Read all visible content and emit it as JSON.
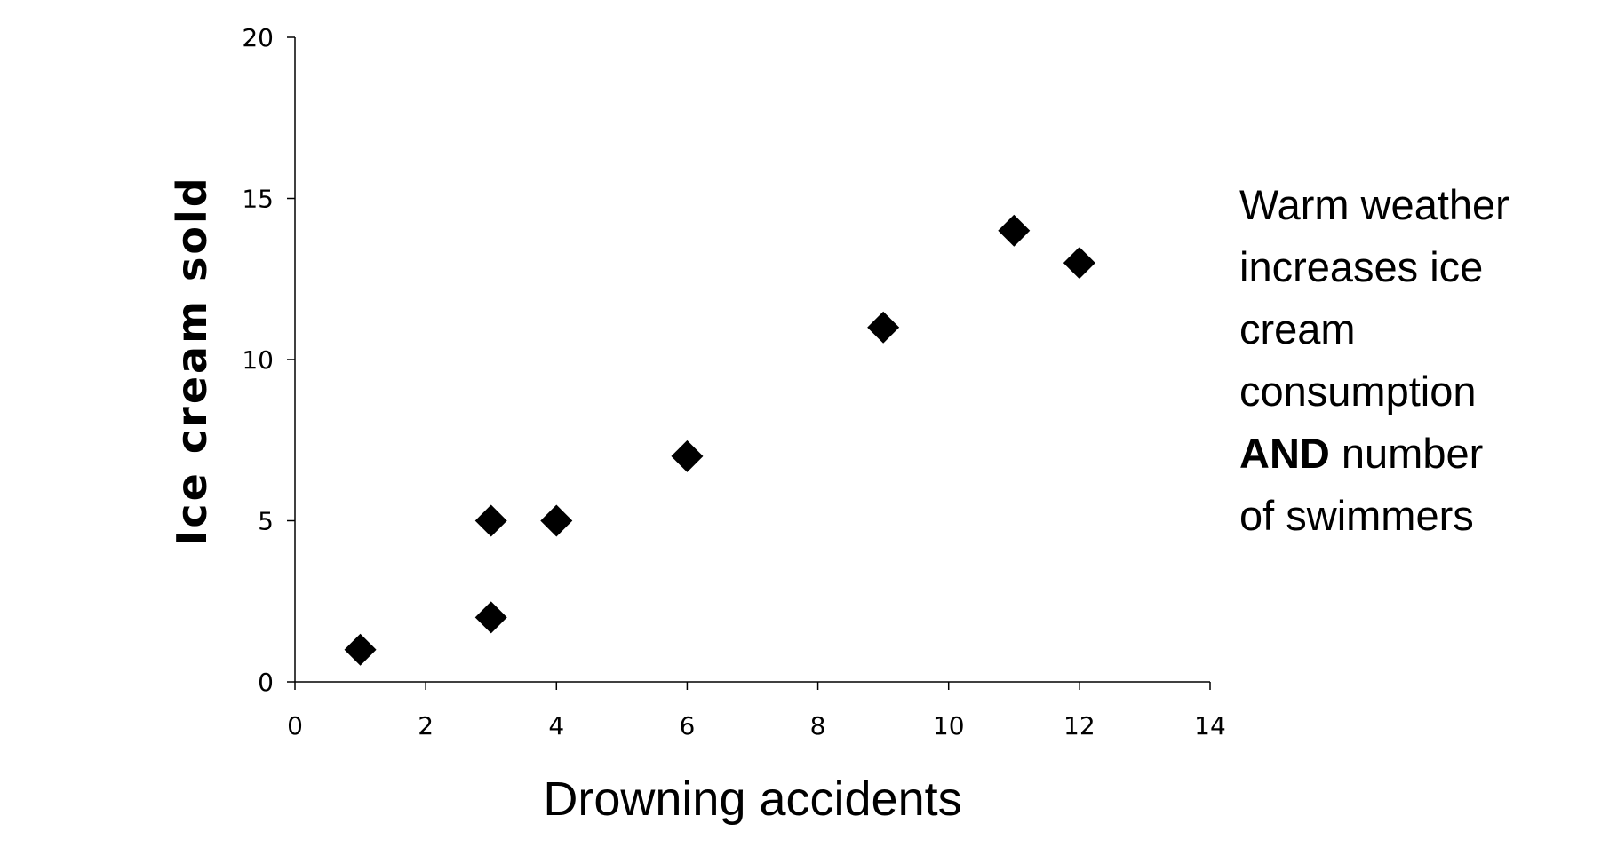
{
  "chart_data": {
    "type": "scatter",
    "xlabel": "Drowning accidents",
    "ylabel": "Ice cream sold",
    "xlim": [
      0,
      14
    ],
    "ylim": [
      0,
      20
    ],
    "x_ticks": [
      0,
      2,
      4,
      6,
      8,
      10,
      12,
      14
    ],
    "y_ticks": [
      0,
      5,
      10,
      15,
      20
    ],
    "x_tick_labels": [
      "0",
      "2",
      "4",
      "6",
      "8",
      "10",
      "12",
      "14"
    ],
    "y_tick_labels": [
      "0",
      "5",
      "10",
      "15",
      "20"
    ],
    "grid": false,
    "marker": "diamond",
    "marker_color": "#000000",
    "series": [
      {
        "points": [
          {
            "x": 1,
            "y": 1
          },
          {
            "x": 3,
            "y": 2
          },
          {
            "x": 3,
            "y": 5
          },
          {
            "x": 4,
            "y": 5
          },
          {
            "x": 6,
            "y": 7
          },
          {
            "x": 9,
            "y": 11
          },
          {
            "x": 11,
            "y": 14
          },
          {
            "x": 12,
            "y": 13
          }
        ]
      }
    ],
    "annotation": {
      "line1": "Warm weather",
      "line2": "increases ice",
      "line3": "cream",
      "line4": "consumption",
      "line5_bold": "AND",
      "line5_rest": " number",
      "line6": "of swimmers"
    }
  }
}
